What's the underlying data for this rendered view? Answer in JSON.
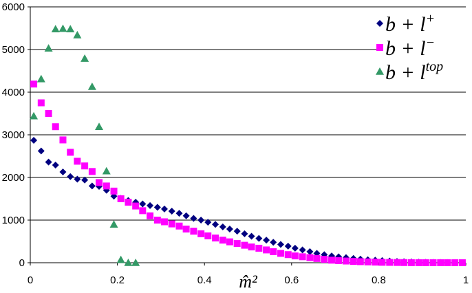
{
  "chart_data": {
    "type": "scatter",
    "xlabel": "m̂²",
    "ylabel": "",
    "xlim": [
      0,
      1
    ],
    "ylim": [
      0,
      6000
    ],
    "x_ticks": [
      0,
      0.2,
      0.4,
      0.6,
      0.8,
      1
    ],
    "x_tick_labels": [
      "0",
      "0.2",
      "0.4",
      "0.6",
      "0.8",
      "1"
    ],
    "y_ticks": [
      0,
      1000,
      2000,
      3000,
      4000,
      5000,
      6000
    ],
    "y_tick_labels": [
      "0",
      "1000",
      "2000",
      "3000",
      "4000",
      "5000",
      "6000"
    ],
    "grid": "horizontal",
    "legend_position": "top-right",
    "series": [
      {
        "name": "b + l+",
        "legend_base": "b + l",
        "legend_sup": "+",
        "color": "#000080",
        "marker": "diamond",
        "x": [
          0.008,
          0.025,
          0.042,
          0.058,
          0.075,
          0.092,
          0.108,
          0.125,
          0.142,
          0.158,
          0.175,
          0.192,
          0.208,
          0.225,
          0.242,
          0.258,
          0.275,
          0.292,
          0.308,
          0.325,
          0.342,
          0.358,
          0.375,
          0.392,
          0.408,
          0.425,
          0.442,
          0.458,
          0.475,
          0.492,
          0.508,
          0.525,
          0.542,
          0.558,
          0.575,
          0.592,
          0.608,
          0.625,
          0.642,
          0.658,
          0.675,
          0.692,
          0.708,
          0.725,
          0.742,
          0.758,
          0.775,
          0.792,
          0.808,
          0.825,
          0.842,
          0.858,
          0.875,
          0.892,
          0.908,
          0.925,
          0.942,
          0.958,
          0.975,
          0.992
        ],
        "y": [
          2870,
          2620,
          2360,
          2290,
          2130,
          2020,
          1960,
          1940,
          1800,
          1790,
          1700,
          1560,
          1510,
          1460,
          1420,
          1380,
          1340,
          1300,
          1260,
          1210,
          1160,
          1100,
          1040,
          1000,
          950,
          900,
          840,
          790,
          740,
          680,
          620,
          570,
          530,
          480,
          430,
          390,
          340,
          300,
          260,
          220,
          190,
          160,
          140,
          120,
          100,
          85,
          70,
          60,
          50,
          40,
          30,
          25,
          20,
          15,
          10,
          8,
          6,
          4,
          2,
          1
        ]
      },
      {
        "name": "b + l−",
        "legend_base": "b + l",
        "legend_sup": "−",
        "color": "#FF00FF",
        "marker": "square",
        "x": [
          0.008,
          0.025,
          0.042,
          0.058,
          0.075,
          0.092,
          0.108,
          0.125,
          0.142,
          0.158,
          0.175,
          0.192,
          0.208,
          0.225,
          0.242,
          0.258,
          0.275,
          0.292,
          0.308,
          0.325,
          0.342,
          0.358,
          0.375,
          0.392,
          0.408,
          0.425,
          0.442,
          0.458,
          0.475,
          0.492,
          0.508,
          0.525,
          0.542,
          0.558,
          0.575,
          0.592,
          0.608,
          0.625,
          0.642,
          0.658,
          0.675,
          0.692,
          0.708,
          0.725,
          0.742,
          0.758,
          0.775,
          0.792,
          0.808,
          0.825,
          0.842,
          0.858,
          0.875,
          0.892,
          0.908,
          0.925,
          0.942,
          0.958,
          0.975,
          0.992
        ],
        "y": [
          4190,
          3750,
          3500,
          3190,
          2880,
          2590,
          2380,
          2270,
          2140,
          1880,
          1800,
          1680,
          1500,
          1420,
          1330,
          1220,
          1100,
          1000,
          960,
          910,
          860,
          790,
          740,
          680,
          630,
          580,
          530,
          490,
          450,
          410,
          370,
          340,
          300,
          260,
          220,
          190,
          160,
          140,
          120,
          100,
          80,
          60,
          50,
          40,
          30,
          25,
          20,
          15,
          10,
          8,
          6,
          4,
          2,
          1,
          0,
          0,
          0,
          0,
          0,
          0
        ]
      },
      {
        "name": "b + ltop",
        "legend_base": "b + l",
        "legend_sup": "top",
        "color": "#339966",
        "marker": "triangle",
        "x": [
          0.008,
          0.025,
          0.042,
          0.058,
          0.075,
          0.092,
          0.108,
          0.125,
          0.142,
          0.158,
          0.175,
          0.192,
          0.208,
          0.225,
          0.242
        ],
        "y": [
          3440,
          4310,
          5030,
          5480,
          5490,
          5480,
          5340,
          4790,
          4130,
          3190,
          2150,
          900,
          70,
          0,
          0
        ]
      }
    ]
  }
}
